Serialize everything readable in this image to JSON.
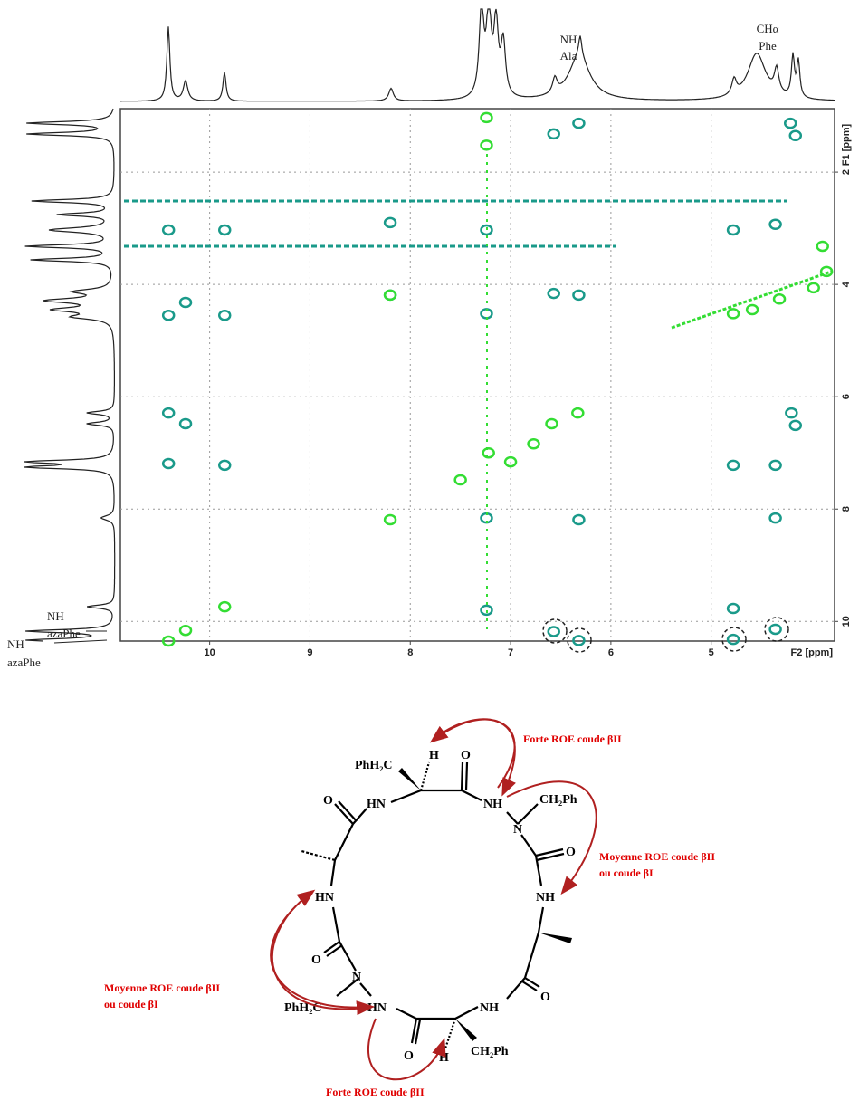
{
  "chart_data": {
    "type": "scatter",
    "xlabel": "F2 [ppm]",
    "ylabel": "F1 [ppm]",
    "xlim": [
      10.89,
      3.77
    ],
    "ylim": [
      0.87,
      10.35
    ],
    "xticks": [
      10,
      9,
      8,
      7,
      6,
      5
    ],
    "yticks": [
      2,
      4,
      6,
      8,
      10
    ],
    "grid": true,
    "series": [
      {
        "color": "#1a9a8a",
        "x": [
          6.57,
          6.32,
          4.21,
          4.16,
          10.41,
          9.85,
          8.2,
          7.24,
          4.78,
          4.36,
          10.24,
          10.41,
          9.85,
          8.2,
          7.24,
          6.57,
          6.32,
          10.41,
          10.24,
          10.41,
          9.85,
          4.78,
          4.36,
          4.2,
          4.16,
          7.24,
          6.32,
          4.36,
          7.24,
          4.78,
          6.57,
          6.32,
          4.78,
          4.36
        ],
        "values": [
          1.32,
          1.13,
          1.13,
          1.35,
          3.03,
          3.03,
          2.9,
          3.03,
          3.03,
          2.93,
          4.32,
          4.55,
          4.55,
          4.19,
          4.52,
          4.16,
          4.19,
          6.29,
          6.48,
          7.19,
          7.22,
          7.22,
          7.22,
          6.29,
          6.51,
          8.16,
          8.19,
          8.16,
          9.8,
          9.77,
          10.18,
          10.34,
          10.32,
          10.14
        ]
      },
      {
        "color": "#33dd33",
        "x": [
          7.24,
          7.24,
          4.32,
          3.98,
          4.59,
          4.78,
          3.85,
          3.89,
          8.2,
          9.85,
          10.24,
          10.41,
          6.59,
          6.33,
          7.0,
          7.22,
          7.5,
          6.77,
          8.2
        ],
        "values": [
          1.03,
          1.52,
          4.26,
          4.06,
          4.45,
          4.52,
          3.77,
          3.32,
          8.19,
          9.74,
          10.16,
          10.35,
          6.48,
          6.29,
          7.16,
          7.0,
          7.48,
          6.84,
          4.19
        ]
      }
    ]
  },
  "annotations": {
    "nh_ala": [
      "NH",
      "Ala"
    ],
    "ch_phe": [
      "CHα",
      "Phe"
    ],
    "nh_azaphe_1": [
      "NH",
      "azaPhe"
    ],
    "nh_azaphe_2": [
      "NH",
      "azaPhe"
    ]
  },
  "structure": {
    "labels": [
      "PhH₂C",
      "H",
      "O",
      "HN",
      "NH",
      "CH₂Ph",
      "N",
      "O",
      "NH",
      "O",
      "NH",
      "HN",
      "O",
      "N",
      "PhH₂C",
      "HN",
      "O",
      "H",
      "CH₂Ph",
      "O"
    ],
    "roe": [
      "Forte ROE coude βII",
      "Moyenne ROE coude βII",
      "ou coude βI",
      "Moyenne ROE coude βII",
      "ou coude βI",
      "Forte ROE coude βII"
    ]
  }
}
